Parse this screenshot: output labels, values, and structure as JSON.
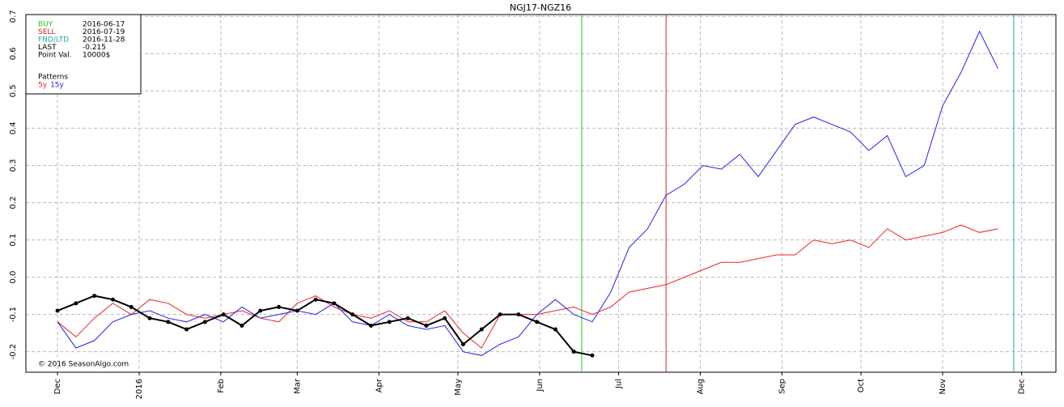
{
  "chart_data": {
    "type": "line",
    "title": "NGJ17-NGZ16",
    "x": [
      "2015-12-01",
      "2015-12-08",
      "2015-12-15",
      "2015-12-22",
      "2015-12-29",
      "2016-01-05",
      "2016-01-12",
      "2016-01-19",
      "2016-01-26",
      "2016-02-02",
      "2016-02-09",
      "2016-02-16",
      "2016-02-23",
      "2016-03-01",
      "2016-03-08",
      "2016-03-15",
      "2016-03-22",
      "2016-03-29",
      "2016-04-05",
      "2016-04-12",
      "2016-04-19",
      "2016-04-26",
      "2016-05-03",
      "2016-05-10",
      "2016-05-17",
      "2016-05-24",
      "2016-05-31",
      "2016-06-07",
      "2016-06-14",
      "2016-06-21",
      "2016-06-28",
      "2016-07-05",
      "2016-07-12",
      "2016-07-19",
      "2016-07-26",
      "2016-08-02",
      "2016-08-09",
      "2016-08-16",
      "2016-08-23",
      "2016-08-30",
      "2016-09-06",
      "2016-09-13",
      "2016-09-20",
      "2016-09-27",
      "2016-10-04",
      "2016-10-11",
      "2016-10-18",
      "2016-10-25",
      "2016-11-01",
      "2016-11-08",
      "2016-11-15",
      "2016-11-22"
    ],
    "series": [
      {
        "name": "5y",
        "color": "#ee2222",
        "values": [
          -0.12,
          -0.16,
          -0.11,
          -0.07,
          -0.1,
          -0.06,
          -0.07,
          -0.1,
          -0.11,
          -0.1,
          -0.09,
          -0.11,
          -0.12,
          -0.07,
          -0.05,
          -0.08,
          -0.1,
          -0.11,
          -0.09,
          -0.12,
          -0.12,
          -0.09,
          -0.15,
          -0.19,
          -0.1,
          -0.1,
          -0.1,
          -0.09,
          -0.08,
          -0.1,
          -0.08,
          -0.04,
          -0.03,
          -0.02,
          0.0,
          0.02,
          0.04,
          0.04,
          0.05,
          0.06,
          0.06,
          0.1,
          0.09,
          0.1,
          0.08,
          0.13,
          0.1,
          0.11,
          0.12,
          0.14,
          0.12,
          0.13
        ]
      },
      {
        "name": "15y",
        "color": "#2222ee",
        "values": [
          -0.12,
          -0.19,
          -0.17,
          -0.12,
          -0.1,
          -0.09,
          -0.11,
          -0.12,
          -0.1,
          -0.12,
          -0.08,
          -0.11,
          -0.1,
          -0.09,
          -0.1,
          -0.07,
          -0.12,
          -0.13,
          -0.1,
          -0.13,
          -0.14,
          -0.13,
          -0.2,
          -0.21,
          -0.18,
          -0.16,
          -0.1,
          -0.06,
          -0.1,
          -0.12,
          -0.04,
          0.08,
          0.13,
          0.22,
          0.25,
          0.3,
          0.29,
          0.33,
          0.27,
          0.34,
          0.41,
          0.43,
          0.41,
          0.39,
          0.34,
          0.38,
          0.27,
          0.3,
          0.46,
          0.55,
          0.66,
          0.56
        ]
      },
      {
        "color": "#000000",
        "markers": true,
        "values": [
          -0.09,
          -0.07,
          -0.05,
          -0.06,
          -0.08,
          -0.11,
          -0.12,
          -0.14,
          -0.12,
          -0.1,
          -0.13,
          -0.09,
          -0.08,
          -0.09,
          -0.06,
          -0.07,
          -0.1,
          -0.13,
          -0.12,
          -0.11,
          -0.13,
          -0.11,
          -0.18,
          -0.14,
          -0.1,
          -0.1,
          -0.12,
          -0.14,
          -0.2,
          -0.21,
          null,
          null,
          null,
          null,
          null,
          null,
          null,
          null,
          null,
          null,
          null,
          null,
          null,
          null,
          null,
          null,
          null,
          null,
          null,
          null,
          null,
          null
        ]
      }
    ],
    "xlim": [
      "2015-11-19",
      "2016-12-14"
    ],
    "xticks": [
      {
        "value": "2015-12-01",
        "label": "Dec"
      },
      {
        "value": "2016-01-01",
        "label": "2016"
      },
      {
        "value": "2016-02-01",
        "label": "Feb"
      },
      {
        "value": "2016-03-01",
        "label": "Mar"
      },
      {
        "value": "2016-04-01",
        "label": "Apr"
      },
      {
        "value": "2016-05-01",
        "label": "May"
      },
      {
        "value": "2016-06-01",
        "label": "Jun"
      },
      {
        "value": "2016-07-01",
        "label": "Jul"
      },
      {
        "value": "2016-08-01",
        "label": "Aug"
      },
      {
        "value": "2016-09-01",
        "label": "Sep"
      },
      {
        "value": "2016-10-01",
        "label": "Oct"
      },
      {
        "value": "2016-11-01",
        "label": "Nov"
      },
      {
        "value": "2016-12-01",
        "label": "Dec"
      }
    ],
    "ylim": [
      -0.255,
      0.705
    ],
    "yticks": [
      -0.2,
      -0.1,
      {
        "value": 0,
        "label": "0.0"
      },
      0.1,
      0.2,
      0.3,
      0.4,
      0.5,
      0.6,
      0.7
    ],
    "grid": true,
    "info": [
      {
        "label": "BUY",
        "value": "2016-06-17",
        "color": "#22cc22",
        "vline": true
      },
      {
        "label": "SELL",
        "value": "2016-07-19",
        "color": "#dd2222",
        "vline": true
      },
      {
        "label": "FND/LTD",
        "value": "2016-11-28",
        "color": "#22aaaa",
        "vline": true
      },
      {
        "label": "LAST",
        "value": -0.215,
        "color": "#000000"
      },
      {
        "label": "Point Val.",
        "value": "10000$",
        "color": "#000000"
      }
    ],
    "patterns_title": "Patterns",
    "copyright": "© 2016 SeasonAlgo.com"
  }
}
